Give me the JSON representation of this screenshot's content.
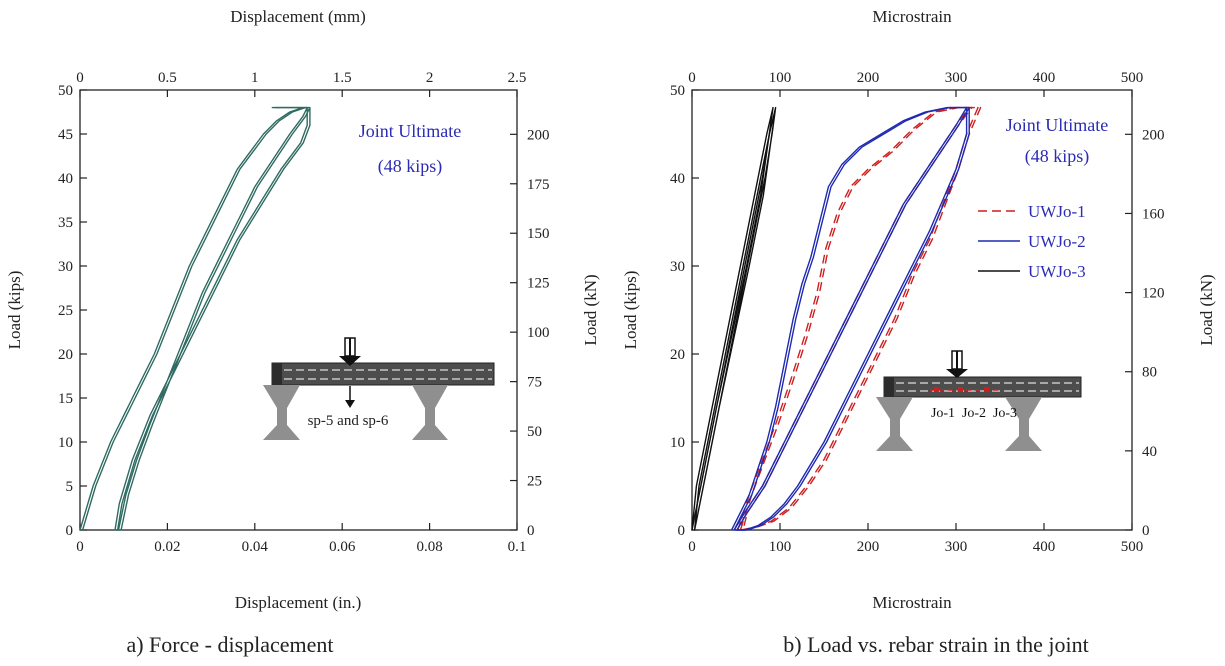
{
  "charts": [
    {
      "caption": "a) Force - displacement",
      "top_axis_label": "Displacement (mm)",
      "bottom_axis_label": "Displacement (in.)",
      "left_axis_label": "Load (kips)",
      "right_axis_label": "Load (kN)",
      "top_ticks": [
        "0",
        "0.5",
        "1",
        "1.5",
        "2",
        "2.5"
      ],
      "bottom_ticks": [
        "0",
        "0.02",
        "0.04",
        "0.06",
        "0.08",
        "0.1"
      ],
      "left_ticks": [
        "0",
        "5",
        "10",
        "15",
        "20",
        "25",
        "30",
        "35",
        "40",
        "45",
        "50"
      ],
      "right_ticks": [
        "0",
        "25",
        "50",
        "75",
        "100",
        "125",
        "150",
        "175",
        "200"
      ],
      "annotation_line1": "Joint Ultimate",
      "annotation_line2": "(48 kips)",
      "schematic_label": "sp-5 and sp-6"
    },
    {
      "caption": "b) Load vs. rebar strain in the joint",
      "top_axis_label": "Microstrain",
      "bottom_axis_label": "Microstrain",
      "left_axis_label": "Load (kips)",
      "right_axis_label": "Load (kN)",
      "top_ticks": [
        "0",
        "100",
        "200",
        "300",
        "400",
        "500"
      ],
      "bottom_ticks": [
        "0",
        "100",
        "200",
        "300",
        "400",
        "500"
      ],
      "left_ticks": [
        "0",
        "10",
        "20",
        "30",
        "40",
        "50"
      ],
      "right_ticks": [
        "0",
        "40",
        "80",
        "120",
        "160",
        "200"
      ],
      "annotation_line1": "Joint Ultimate",
      "annotation_line2": "(48 kips)",
      "legend": [
        "UWJo-1",
        "UWJo-2",
        "UWJo-3"
      ],
      "schematic_labels": [
        "Jo-1",
        "Jo-2",
        "Jo-3"
      ]
    }
  ],
  "chart_data": [
    {
      "type": "line",
      "title": "a) Force - displacement",
      "xlabel": "Displacement (in.)",
      "ylabel": "Load (kips)",
      "x2label": "Displacement (mm)",
      "y2label": "Load (kN)",
      "xlim": [
        0,
        0.1
      ],
      "ylim": [
        0,
        50
      ],
      "x2lim": [
        0,
        2.5
      ],
      "y2lim": [
        0,
        222.4
      ],
      "annotation": "Joint Ultimate (48 kips)",
      "color": "#2f6b62",
      "series": [
        {
          "x": [
            0,
            0.003,
            0.007,
            0.012,
            0.017,
            0.021,
            0.025,
            0.029,
            0.033,
            0.036,
            0.039,
            0.042,
            0.045,
            0.048,
            0.051,
            0.052,
            0.052,
            0.044,
            0.052,
            0.052,
            0.0505,
            0.046,
            0.041,
            0.036,
            0.031,
            0.026,
            0.021,
            0.016,
            0.012,
            0.009,
            0.008,
            0.0088,
            0.0105,
            0.013,
            0.016,
            0.02,
            0.024,
            0.028,
            0.032,
            0.036,
            0.04,
            0.044,
            0.048,
            0.051,
            0.052
          ],
          "y": [
            0,
            5,
            10,
            15,
            20,
            25,
            30,
            34,
            38,
            41,
            43,
            45,
            46.5,
            47.5,
            48,
            48,
            48,
            48,
            48,
            46,
            44,
            41,
            37,
            33,
            28,
            23,
            18,
            13,
            8,
            3,
            0,
            0,
            4,
            8,
            12,
            17,
            22,
            27,
            31,
            35,
            39,
            42,
            45,
            47,
            48
          ]
        }
      ]
    },
    {
      "type": "line",
      "title": "b) Load vs. rebar strain in the joint",
      "xlabel": "Microstrain",
      "ylabel": "Load (kips)",
      "x2label": "Microstrain",
      "y2label": "Load (kN)",
      "xlim": [
        0,
        500
      ],
      "ylim": [
        0,
        50
      ],
      "y2lim": [
        0,
        222.4
      ],
      "annotation": "Joint Ultimate (48 kips)",
      "legend_position": "right",
      "series": [
        {
          "name": "UWJo-1",
          "color": "#cc1f1f",
          "dash": true,
          "x": [
            52,
            65,
            80,
            95,
            112,
            128,
            142,
            152,
            165,
            180,
            200,
            225,
            250,
            275,
            300,
            325,
            312,
            300,
            285,
            270,
            250,
            230,
            210,
            190,
            170,
            150,
            130,
            110,
            90,
            70,
            55,
            60,
            80,
            100,
            120,
            140,
            160,
            180,
            200,
            220,
            240,
            260,
            280,
            300,
            315
          ],
          "y": [
            0,
            4,
            8,
            12,
            17,
            22,
            27,
            32,
            36,
            39,
            41,
            43,
            45.5,
            47.5,
            48,
            48,
            45,
            41,
            37,
            33,
            29,
            24,
            20,
            16,
            12,
            8,
            5,
            2.5,
            1,
            0.3,
            0,
            2,
            5,
            9,
            13,
            17,
            21,
            25,
            29,
            33,
            37,
            40,
            43,
            46,
            48
          ]
        },
        {
          "name": "UWJo-2",
          "color": "#1f2ab0",
          "dash": false,
          "x": [
            45,
            55,
            65,
            75,
            85,
            95,
            105,
            115,
            125,
            135,
            145,
            155,
            170,
            190,
            215,
            240,
            265,
            290,
            312,
            312,
            300,
            285,
            270,
            255,
            240,
            225,
            210,
            195,
            180,
            165,
            150,
            135,
            120,
            105,
            90,
            75,
            60,
            48,
            60,
            80,
            100,
            120,
            140,
            160,
            180,
            200,
            220,
            240,
            260,
            280,
            300,
            312
          ],
          "y": [
            0,
            2,
            4,
            7,
            10,
            14,
            19,
            24,
            28,
            31,
            35,
            39,
            41.5,
            43.5,
            45,
            46.5,
            47.5,
            48,
            48,
            45,
            41,
            37.5,
            34,
            31,
            28,
            25,
            22,
            19,
            16,
            13,
            10,
            7.5,
            5,
            3,
            1.5,
            0.5,
            0,
            0,
            2,
            5,
            9,
            13,
            17,
            21,
            25,
            29,
            33,
            37,
            40,
            43,
            46,
            48
          ]
        },
        {
          "name": "UWJo-3",
          "color": "#111111",
          "dash": false,
          "x": [
            0,
            10,
            20,
            30,
            40,
            50,
            60,
            70,
            80,
            88,
            92,
            85,
            75,
            65,
            55,
            45,
            35,
            25,
            15,
            5,
            0,
            12,
            28,
            45,
            62,
            78,
            92
          ],
          "y": [
            0,
            5,
            10,
            15,
            20,
            25,
            30,
            35,
            40,
            45,
            48,
            45,
            40,
            35,
            30,
            25,
            20,
            15,
            10,
            5,
            0,
            6,
            14,
            22,
            30,
            38,
            48
          ]
        }
      ]
    }
  ]
}
